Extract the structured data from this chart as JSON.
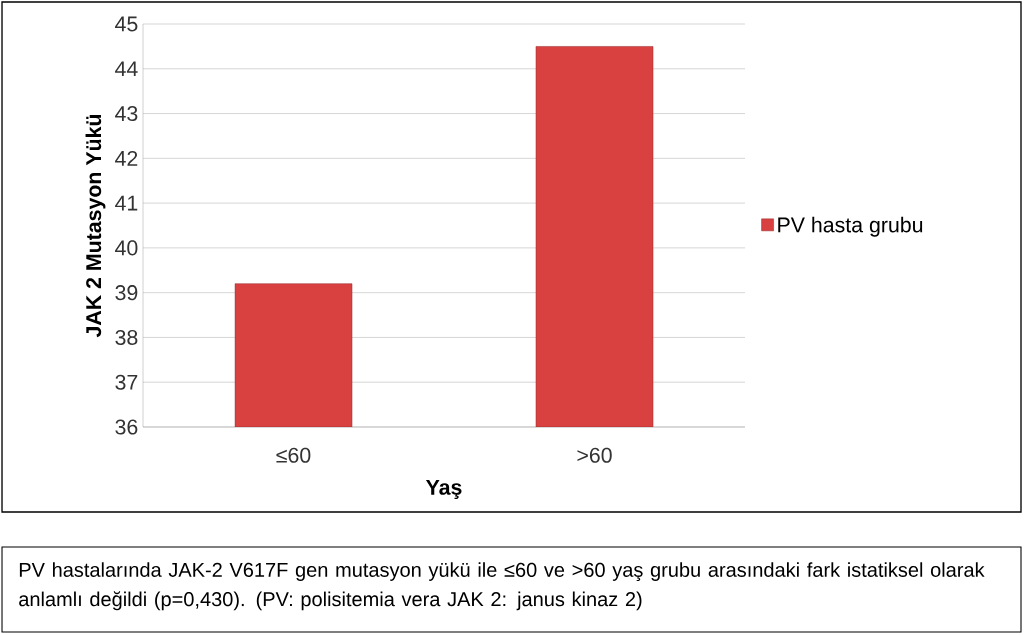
{
  "chart_data": {
    "type": "bar",
    "xlabel": "Yaş",
    "ylabel": "JAK 2 Mutasyon Yükü",
    "categories": [
      "≤60",
      ">60"
    ],
    "series": [
      {
        "name": "PV hasta grubu",
        "color": "#d94040",
        "values": [
          39.2,
          44.5
        ]
      }
    ],
    "ylim": [
      36,
      45
    ],
    "yticks": [
      36,
      37,
      38,
      39,
      40,
      41,
      42,
      43,
      44,
      45
    ],
    "grid": "y",
    "legend": "right",
    "annotations": [
      "PV hastalarında JAK-2 V617F gen mutasyon yükü ile ≤60 ve >60 yaş grubu arasındaki fark istatiksel olarak anlamlı değildi (p=0,430). (PV: polisitemia vera   JAK 2: janus kinaz 2)"
    ]
  }
}
